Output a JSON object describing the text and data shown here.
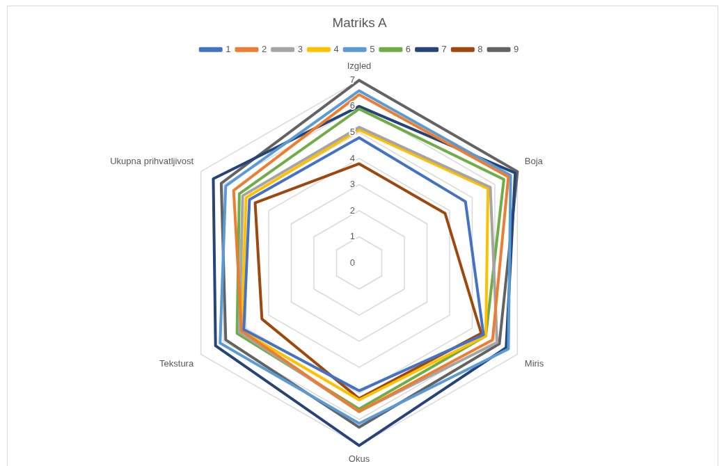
{
  "chart_data": {
    "type": "radar",
    "title": "Matriks A",
    "categories": [
      "Izgled",
      "Boja",
      "Miris",
      "Okus",
      "Tekstura",
      "Ukupna prihvatljivost"
    ],
    "ylim": [
      0,
      7
    ],
    "yticks": [
      0,
      1,
      2,
      3,
      4,
      5,
      6,
      7
    ],
    "grid": true,
    "legend": "top",
    "marker": "none",
    "series": [
      {
        "name": "1",
        "color": "#4472c4",
        "values": [
          4.8,
          4.7,
          5.5,
          4.9,
          5.1,
          4.85
        ]
      },
      {
        "name": "2",
        "color": "#ed7d31",
        "values": [
          6.45,
          6.6,
          5.9,
          5.7,
          5.2,
          5.55
        ]
      },
      {
        "name": "3",
        "color": "#a5a5a5",
        "values": [
          5.2,
          5.8,
          6.1,
          5.7,
          5.3,
          5.15
        ]
      },
      {
        "name": "4",
        "color": "#ffc000",
        "values": [
          5.1,
          5.7,
          5.6,
          5.25,
          5.2,
          5
        ]
      },
      {
        "name": "5",
        "color": "#5b9bd5",
        "values": [
          6.6,
          6.7,
          6.6,
          6.15,
          6.15,
          5.9
        ]
      },
      {
        "name": "6",
        "color": "#70ad47",
        "values": [
          5.9,
          6.4,
          5.6,
          5.6,
          5.4,
          5.3
        ]
      },
      {
        "name": "7",
        "color": "#264478",
        "values": [
          6,
          6.9,
          6.5,
          7,
          6.35,
          6.45
        ]
      },
      {
        "name": "8",
        "color": "#9e480e",
        "values": [
          3.8,
          3.8,
          5.4,
          5.2,
          4.3,
          4.6
        ]
      },
      {
        "name": "9",
        "color": "#636363",
        "values": [
          7,
          7,
          6.2,
          6.3,
          5.9,
          6.1
        ]
      }
    ]
  }
}
